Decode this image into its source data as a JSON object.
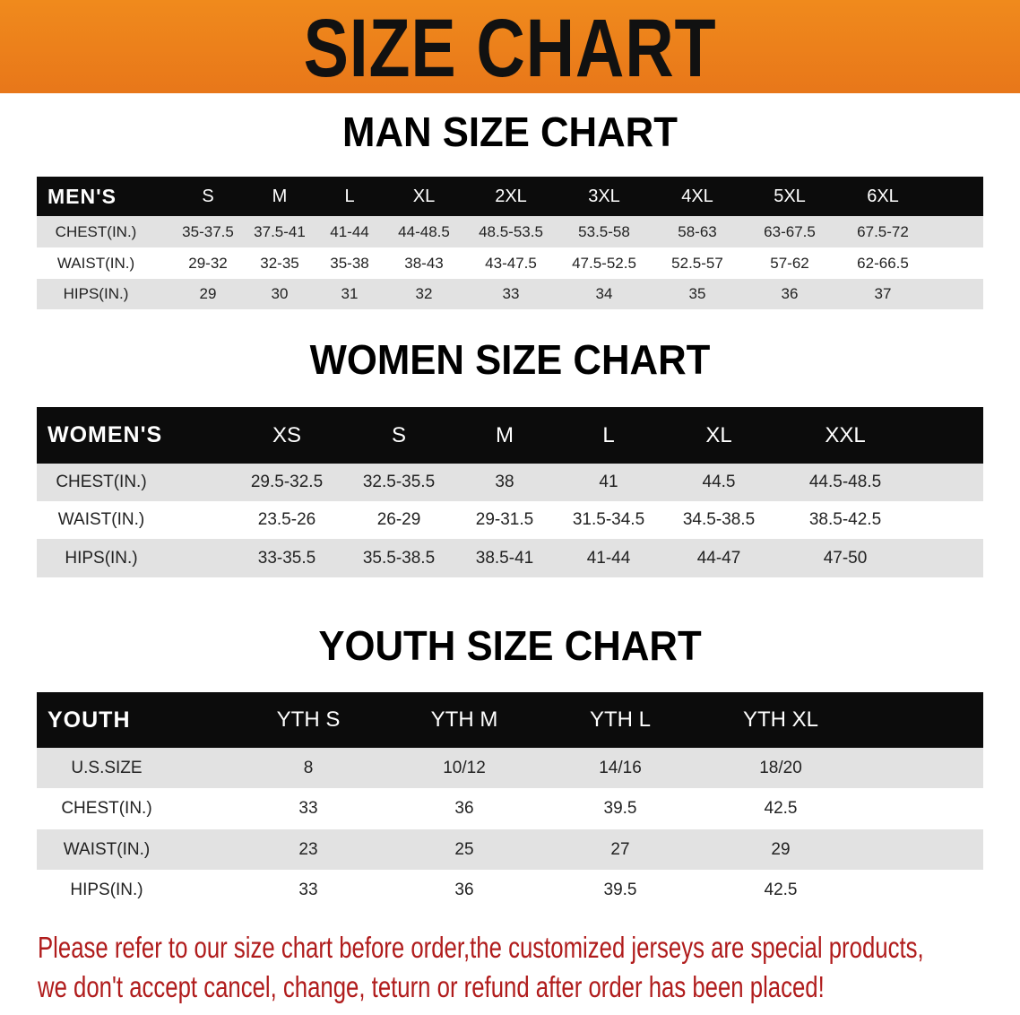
{
  "banner_title": "SIZE CHART",
  "men": {
    "title": "MAN SIZE CHART",
    "header_label": "MEN'S",
    "sizes": [
      "S",
      "M",
      "L",
      "XL",
      "2XL",
      "3XL",
      "4XL",
      "5XL",
      "6XL"
    ],
    "rows": [
      {
        "label": "CHEST(IN.)",
        "values": [
          "35-37.5",
          "37.5-41",
          "41-44",
          "44-48.5",
          "48.5-53.5",
          "53.5-58",
          "58-63",
          "63-67.5",
          "67.5-72"
        ]
      },
      {
        "label": "WAIST(IN.)",
        "values": [
          "29-32",
          "32-35",
          "35-38",
          "38-43",
          "43-47.5",
          "47.5-52.5",
          "52.5-57",
          "57-62",
          "62-66.5"
        ]
      },
      {
        "label": "HIPS(IN.)",
        "values": [
          "29",
          "30",
          "31",
          "32",
          "33",
          "34",
          "35",
          "36",
          "37"
        ]
      }
    ]
  },
  "women": {
    "title": "WOMEN SIZE CHART",
    "header_label": "WOMEN'S",
    "sizes": [
      "XS",
      "S",
      "M",
      "L",
      "XL",
      "XXL"
    ],
    "rows": [
      {
        "label": "CHEST(IN.)",
        "values": [
          "29.5-32.5",
          "32.5-35.5",
          "38",
          "41",
          "44.5",
          "44.5-48.5"
        ]
      },
      {
        "label": "WAIST(IN.)",
        "values": [
          "23.5-26",
          "26-29",
          "29-31.5",
          "31.5-34.5",
          "34.5-38.5",
          "38.5-42.5"
        ]
      },
      {
        "label": "HIPS(IN.)",
        "values": [
          "33-35.5",
          "35.5-38.5",
          "38.5-41",
          "41-44",
          "44-47",
          "47-50"
        ]
      }
    ]
  },
  "youth": {
    "title": "YOUTH SIZE CHART",
    "header_label": "YOUTH",
    "sizes": [
      "YTH S",
      "YTH M",
      "YTH L",
      "YTH XL"
    ],
    "rows": [
      {
        "label": "U.S.SIZE",
        "values": [
          "8",
          "10/12",
          "14/16",
          "18/20"
        ]
      },
      {
        "label": "CHEST(IN.)",
        "values": [
          "33",
          "36",
          "39.5",
          "42.5"
        ]
      },
      {
        "label": "WAIST(IN.)",
        "values": [
          "23",
          "25",
          "27",
          "29"
        ]
      },
      {
        "label": "HIPS(IN.)",
        "values": [
          "33",
          "36",
          "39.5",
          "42.5"
        ]
      }
    ]
  },
  "note": {
    "line1": "Please refer to our size chart before order,the customized jerseys are special products,",
    "line2": "we don't accept cancel, change, teturn or refund after order has been placed!"
  },
  "colors": {
    "banner": "#ee821b",
    "header": "#0c0c0c",
    "row_alt": "#e2e2e2",
    "note": "#b01c1c"
  }
}
